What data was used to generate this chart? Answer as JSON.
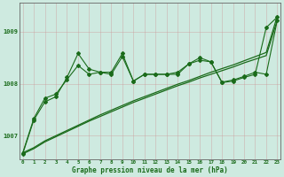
{
  "bg_color": "#ceeae0",
  "line_color": "#1a6b1a",
  "title": "Graphe pression niveau de la mer (hPa)",
  "xlim": [
    -0.3,
    23.3
  ],
  "ylim": [
    1006.55,
    1009.55
  ],
  "y_ticks": [
    1007,
    1008,
    1009
  ],
  "x_ticks": [
    0,
    1,
    2,
    3,
    4,
    5,
    6,
    7,
    8,
    9,
    10,
    11,
    12,
    13,
    14,
    15,
    16,
    17,
    18,
    19,
    20,
    21,
    22,
    23
  ],
  "trend1_y": [
    1006.65,
    1006.75,
    1006.88,
    1006.98,
    1007.08,
    1007.18,
    1007.28,
    1007.37,
    1007.46,
    1007.55,
    1007.64,
    1007.72,
    1007.8,
    1007.88,
    1007.96,
    1008.03,
    1008.11,
    1008.18,
    1008.25,
    1008.32,
    1008.4,
    1008.47,
    1008.54,
    1009.22
  ],
  "trend2_y": [
    1006.67,
    1006.77,
    1006.9,
    1007.0,
    1007.1,
    1007.2,
    1007.3,
    1007.4,
    1007.49,
    1007.58,
    1007.67,
    1007.75,
    1007.83,
    1007.91,
    1007.99,
    1008.06,
    1008.14,
    1008.22,
    1008.29,
    1008.36,
    1008.44,
    1008.52,
    1008.6,
    1009.3
  ],
  "jagged1_y": [
    1006.65,
    1007.3,
    1007.65,
    1007.75,
    1008.12,
    1008.58,
    1008.28,
    1008.22,
    1008.22,
    1008.58,
    1008.05,
    1008.18,
    1008.18,
    1008.18,
    1008.22,
    1008.38,
    1008.45,
    1008.42,
    1008.02,
    1008.05,
    1008.12,
    1008.18,
    1009.08,
    1009.28
  ],
  "jagged2_y": [
    1006.67,
    1007.33,
    1007.72,
    1007.8,
    1008.08,
    1008.35,
    1008.18,
    1008.22,
    1008.18,
    1008.52,
    1008.05,
    1008.18,
    1008.18,
    1008.18,
    1008.18,
    1008.38,
    1008.5,
    1008.42,
    1008.03,
    1008.07,
    1008.14,
    1008.22,
    1008.18,
    1009.22
  ]
}
